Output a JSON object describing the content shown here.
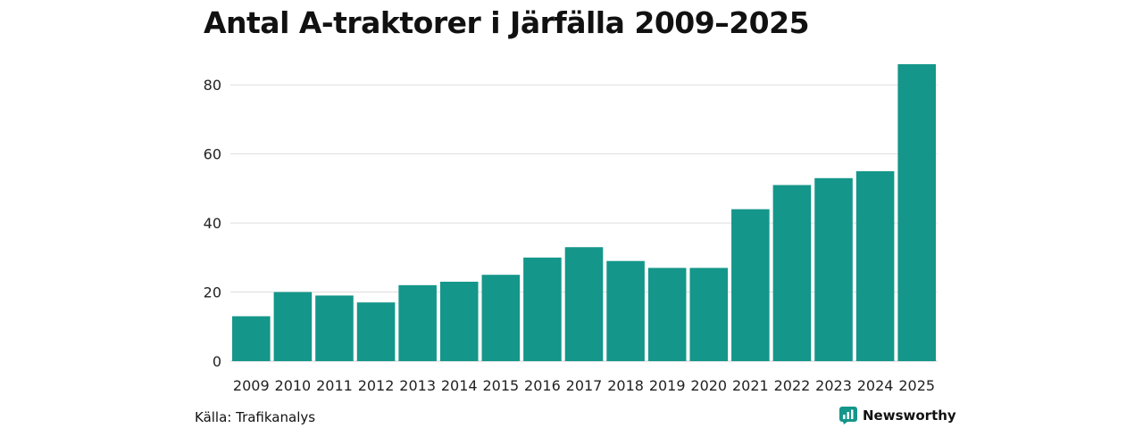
{
  "chart_data": {
    "type": "bar",
    "title": "Antal A-traktorer i Järfälla 2009–2025",
    "xlabel": "",
    "ylabel": "",
    "categories": [
      "2009",
      "2010",
      "2011",
      "2012",
      "2013",
      "2014",
      "2015",
      "2016",
      "2017",
      "2018",
      "2019",
      "2020",
      "2021",
      "2022",
      "2023",
      "2024",
      "2025"
    ],
    "values": [
      13,
      20,
      19,
      17,
      22,
      23,
      25,
      30,
      33,
      29,
      27,
      27,
      44,
      51,
      53,
      55,
      86
    ],
    "ylim": [
      0,
      86
    ],
    "yticks": [
      0,
      20,
      40,
      60,
      80
    ],
    "grid": true,
    "legend": "none"
  },
  "source": "Källa: Trafikanalys",
  "brand": {
    "label": "Newsworthy",
    "icon": "newsworthy-logo-icon"
  },
  "colors": {
    "bar": "#14968a",
    "grid": "#dddddd",
    "brand": "#14968a",
    "text": "#222222"
  }
}
